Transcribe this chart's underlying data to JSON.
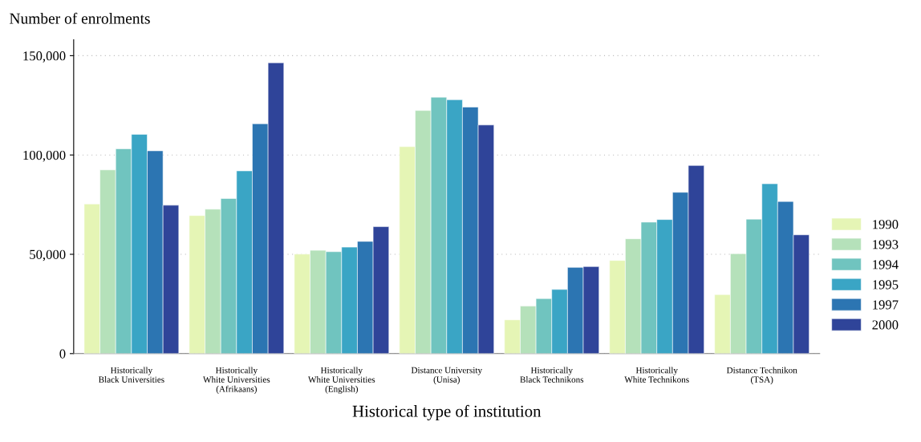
{
  "chart_data": {
    "type": "bar",
    "xlabel": "Historical type of institution",
    "ylabel": "Number of enrolments",
    "categories": [
      "Historically\nBlack Universities",
      "Historically\nWhite Universities\n(Afrikaans)",
      "Historically\nWhite Universities\n(English)",
      "Distance University\n(Unisa)",
      "Historically\nBlack Technikons",
      "Historically\nWhite Technikons",
      "Distance Technikon\n(TSA)"
    ],
    "series": [
      {
        "name": "1990",
        "color": "#e5f5b5",
        "values": [
          75300,
          69500,
          50100,
          104200,
          17000,
          46900,
          29700
        ]
      },
      {
        "name": "1993",
        "color": "#b5e1ba",
        "values": [
          92500,
          72700,
          52000,
          122400,
          23900,
          57800,
          50300
        ]
      },
      {
        "name": "1994",
        "color": "#70c4bf",
        "values": [
          103100,
          78100,
          51300,
          129100,
          27700,
          66200,
          67700
        ]
      },
      {
        "name": "1995",
        "color": "#3aa5c5",
        "values": [
          110400,
          92000,
          53600,
          127800,
          32300,
          67500,
          85500
        ]
      },
      {
        "name": "1997",
        "color": "#2c75b2",
        "values": [
          102100,
          115700,
          56500,
          124100,
          43400,
          81200,
          76600
        ]
      },
      {
        "name": "2000",
        "color": "#2f4499",
        "values": [
          74700,
          146400,
          63900,
          115100,
          43800,
          94700,
          59800
        ]
      }
    ],
    "ylim": [
      0,
      158000
    ],
    "yticks": [
      0,
      {
        "value": 50000,
        "label": "50,000"
      },
      {
        "value": 100000,
        "label": "100,000"
      },
      {
        "value": 150000,
        "label": "150,000"
      }
    ],
    "grid": "y",
    "legend": "right"
  }
}
